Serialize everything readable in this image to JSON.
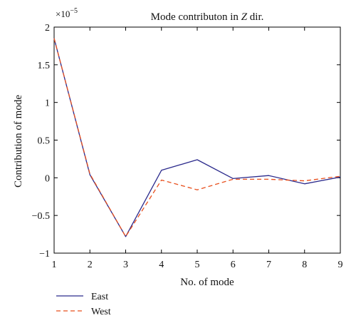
{
  "chart_data": {
    "type": "line",
    "title": "Mode contributon in Z dir.",
    "title_parts": {
      "before": "Mode contributon in ",
      "italic": "Z",
      "after": " dir."
    },
    "xlabel": "No. of mode",
    "ylabel": "Contribution of mode",
    "y_multiplier": {
      "base": "×10",
      "exponent": "−5"
    },
    "x": [
      1,
      2,
      3,
      4,
      5,
      6,
      7,
      8,
      9
    ],
    "xlim": [
      1,
      9
    ],
    "ylim": [
      -1,
      2
    ],
    "x_ticks": [
      "1",
      "2",
      "3",
      "4",
      "5",
      "6",
      "7",
      "8",
      "9"
    ],
    "y_ticks": [
      {
        "value": -1,
        "label": "−1"
      },
      {
        "value": -0.5,
        "label": "−0.5"
      },
      {
        "value": 0,
        "label": "0"
      },
      {
        "value": 0.5,
        "label": "0.5"
      },
      {
        "value": 1,
        "label": "1"
      },
      {
        "value": 1.5,
        "label": "1.5"
      },
      {
        "value": 2,
        "label": "2"
      }
    ],
    "grid": false,
    "legend_position": "bottom-left, below plot",
    "series": [
      {
        "name": "East",
        "color": "#2b2a8c",
        "dash": "solid",
        "values": [
          1.85,
          0.04,
          -0.78,
          0.1,
          0.24,
          -0.01,
          0.03,
          -0.08,
          0.01
        ]
      },
      {
        "name": "West",
        "color": "#e8501e",
        "dash": "dashed",
        "values": [
          1.85,
          0.05,
          -0.78,
          -0.03,
          -0.16,
          -0.02,
          -0.02,
          -0.04,
          0.02
        ]
      }
    ]
  }
}
